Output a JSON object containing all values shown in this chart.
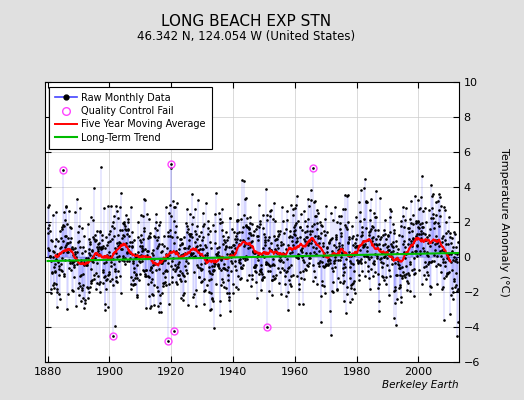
{
  "title": "LONG BEACH EXP STN",
  "subtitle": "46.342 N, 124.054 W (United States)",
  "ylabel": "Temperature Anomaly (°C)",
  "credit": "Berkeley Earth",
  "xlim": [
    1879,
    2013
  ],
  "ylim": [
    -6,
    10
  ],
  "yticks": [
    -6,
    -4,
    -2,
    0,
    2,
    4,
    6,
    8,
    10
  ],
  "xticks": [
    1880,
    1900,
    1920,
    1940,
    1960,
    1980,
    2000
  ],
  "bg_color": "#e0e0e0",
  "plot_bg_color": "#ffffff",
  "raw_line_color": "#4444ff",
  "raw_marker_color": "#000000",
  "moving_avg_color": "#ff0000",
  "trend_color": "#00bb00",
  "qc_fail_color": "#ff44ff",
  "seed": 42,
  "n_years": 133,
  "start_year": 1880,
  "monthly_std": 1.4,
  "trend_slope": 0.003,
  "moving_avg_window": 60,
  "qc_fail_months": [
    60,
    252,
    468,
    480,
    492,
    852,
    1032
  ]
}
